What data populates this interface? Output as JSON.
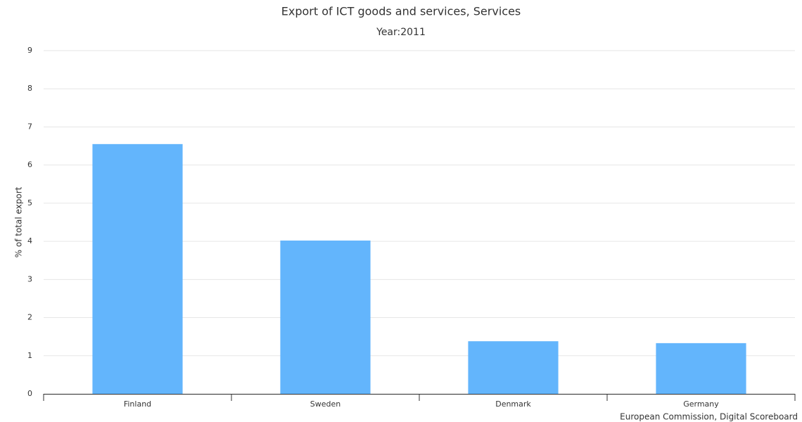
{
  "chart_data": {
    "type": "bar",
    "title": "Export of ICT goods and services, Services",
    "subtitle": "Year:2011",
    "y_label": "% of total export",
    "credits": "European Commission, Digital Scoreboard",
    "categories": [
      "Finland",
      "Sweden",
      "Denmark",
      "Germany"
    ],
    "values": [
      6.55,
      4.02,
      1.38,
      1.33
    ],
    "color": "#63b5fc",
    "ylim": [
      0,
      9
    ],
    "yticks": [
      0,
      1,
      2,
      3,
      4,
      5,
      6,
      7,
      8,
      9
    ],
    "grid": true
  }
}
